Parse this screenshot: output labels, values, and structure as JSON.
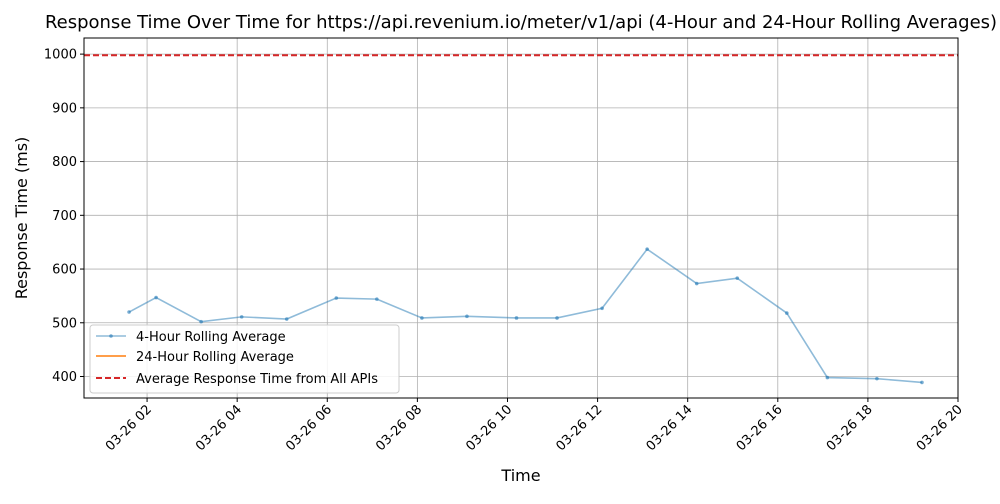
{
  "chart_data": {
    "type": "line",
    "title": "Response Time Over Time for https://api.revenium.io/meter/v1/api (4-Hour and 24-Hour Rolling Averages)",
    "xlabel": "Time",
    "ylabel": "Response Time (ms)",
    "x_ticks": [
      "03-26 02",
      "03-26 04",
      "03-26 06",
      "03-26 08",
      "03-26 10",
      "03-26 12",
      "03-26 14",
      "03-26 16",
      "03-26 18",
      "03-26 20"
    ],
    "xlim": [
      "03-26 00:36",
      "03-26 20:00"
    ],
    "ylim": [
      360,
      1030
    ],
    "y_ticks": [
      400,
      500,
      600,
      700,
      800,
      900,
      1000
    ],
    "grid": true,
    "legend_position": "lower-left",
    "series": [
      {
        "name": "4-Hour Rolling Average",
        "color": "#1f77b4",
        "style": "solid-marker",
        "points": [
          {
            "x": "03-26 01:36",
            "y": 520
          },
          {
            "x": "03-26 02:12",
            "y": 547
          },
          {
            "x": "03-26 03:12",
            "y": 502
          },
          {
            "x": "03-26 04:06",
            "y": 511
          },
          {
            "x": "03-26 05:06",
            "y": 507
          },
          {
            "x": "03-26 06:12",
            "y": 546
          },
          {
            "x": "03-26 07:06",
            "y": 544
          },
          {
            "x": "03-26 08:06",
            "y": 509
          },
          {
            "x": "03-26 09:06",
            "y": 512
          },
          {
            "x": "03-26 10:12",
            "y": 509
          },
          {
            "x": "03-26 11:06",
            "y": 509
          },
          {
            "x": "03-26 12:06",
            "y": 527
          },
          {
            "x": "03-26 13:06",
            "y": 637
          },
          {
            "x": "03-26 14:12",
            "y": 573
          },
          {
            "x": "03-26 15:06",
            "y": 583
          },
          {
            "x": "03-26 16:12",
            "y": 518
          },
          {
            "x": "03-26 17:06",
            "y": 398
          },
          {
            "x": "03-26 18:12",
            "y": 396
          },
          {
            "x": "03-26 19:12",
            "y": 389
          }
        ]
      },
      {
        "name": "24-Hour Rolling Average",
        "color": "#ff7f0e",
        "style": "solid",
        "points": []
      },
      {
        "name": "Average Response Time from All APIs",
        "color": "#d62728",
        "style": "dashed-hline",
        "value": 998
      }
    ]
  }
}
